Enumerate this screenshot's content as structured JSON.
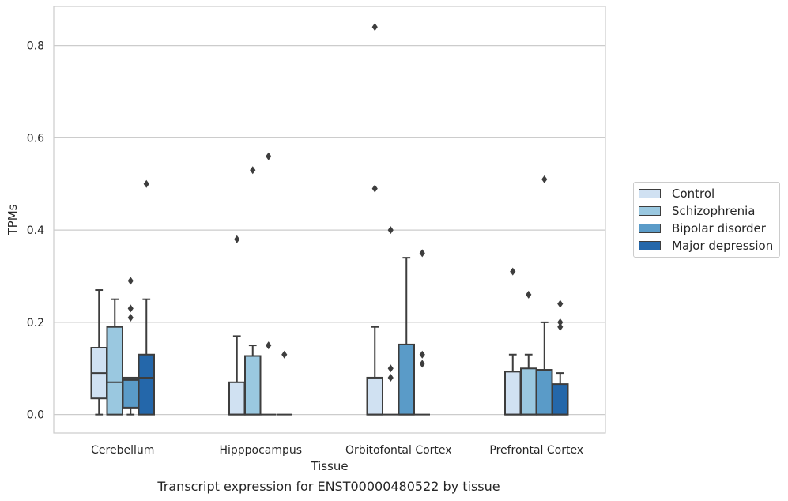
{
  "chart_data": {
    "type": "box",
    "title": "",
    "caption": "Transcript expression for ENST00000480522 by tissue",
    "xlabel": "Tissue",
    "ylabel": "TPMs",
    "ylim": [
      -0.04,
      0.885
    ],
    "yticks": [
      "0.0",
      "0.2",
      "0.4",
      "0.6",
      "0.8"
    ],
    "ytick_values": [
      0.0,
      0.2,
      0.4,
      0.6,
      0.8
    ],
    "grid": "horizontal",
    "legend_position": "outside-right",
    "categories": [
      "Cerebellum",
      "Hipppocampus",
      "Orbitofontal Cortex",
      "Prefrontal Cortex"
    ],
    "series": [
      {
        "name": "Control",
        "color": "#d0e1f2",
        "boxes": [
          {
            "whisker_low": 0.0,
            "q1": 0.035,
            "median": 0.09,
            "q3": 0.145,
            "whisker_high": 0.27,
            "outliers": []
          },
          {
            "whisker_low": 0.0,
            "q1": 0.0,
            "median": 0.0,
            "q3": 0.07,
            "whisker_high": 0.17,
            "outliers": [
              0.38
            ]
          },
          {
            "whisker_low": 0.0,
            "q1": 0.0,
            "median": 0.0,
            "q3": 0.08,
            "whisker_high": 0.19,
            "outliers": [
              0.49,
              0.84
            ]
          },
          {
            "whisker_low": 0.0,
            "q1": 0.0,
            "median": 0.0,
            "q3": 0.093,
            "whisker_high": 0.13,
            "outliers": [
              0.31
            ]
          }
        ]
      },
      {
        "name": "Schizophrenia",
        "color": "#9ac8e0",
        "boxes": [
          {
            "whisker_low": 0.0,
            "q1": 0.0,
            "median": 0.07,
            "q3": 0.19,
            "whisker_high": 0.25,
            "outliers": []
          },
          {
            "whisker_low": 0.0,
            "q1": 0.0,
            "median": 0.0,
            "q3": 0.127,
            "whisker_high": 0.15,
            "outliers": [
              0.53
            ]
          },
          {
            "whisker_low": 0.0,
            "q1": 0.0,
            "median": 0.0,
            "q3": 0.0,
            "whisker_high": 0.0,
            "outliers": [
              0.08,
              0.1,
              0.4
            ]
          },
          {
            "whisker_low": 0.0,
            "q1": 0.0,
            "median": 0.0,
            "q3": 0.1,
            "whisker_high": 0.13,
            "outliers": [
              0.26
            ]
          }
        ]
      },
      {
        "name": "Bipolar disorder",
        "color": "#5a9bc8",
        "boxes": [
          {
            "whisker_low": 0.0,
            "q1": 0.015,
            "median": 0.075,
            "q3": 0.08,
            "whisker_high": 0.08,
            "outliers": [
              0.21,
              0.23,
              0.29
            ]
          },
          {
            "whisker_low": 0.0,
            "q1": 0.0,
            "median": 0.0,
            "q3": 0.0,
            "whisker_high": 0.0,
            "outliers": [
              0.15,
              0.56
            ]
          },
          {
            "whisker_low": 0.0,
            "q1": 0.0,
            "median": 0.0,
            "q3": 0.152,
            "whisker_high": 0.34,
            "outliers": []
          },
          {
            "whisker_low": 0.0,
            "q1": 0.0,
            "median": 0.0,
            "q3": 0.097,
            "whisker_high": 0.2,
            "outliers": [
              0.51
            ]
          }
        ]
      },
      {
        "name": "Major depression",
        "color": "#2467aa",
        "boxes": [
          {
            "whisker_low": 0.0,
            "q1": 0.0,
            "median": 0.08,
            "q3": 0.13,
            "whisker_high": 0.25,
            "outliers": [
              0.5
            ]
          },
          {
            "whisker_low": 0.0,
            "q1": 0.0,
            "median": 0.0,
            "q3": 0.0,
            "whisker_high": 0.0,
            "outliers": [
              0.13
            ]
          },
          {
            "whisker_low": 0.0,
            "q1": 0.0,
            "median": 0.0,
            "q3": 0.0,
            "whisker_high": 0.0,
            "outliers": [
              0.11,
              0.13,
              0.35
            ]
          },
          {
            "whisker_low": 0.0,
            "q1": 0.0,
            "median": 0.0,
            "q3": 0.066,
            "whisker_high": 0.09,
            "outliers": [
              0.19,
              0.2,
              0.24
            ]
          }
        ]
      }
    ]
  }
}
